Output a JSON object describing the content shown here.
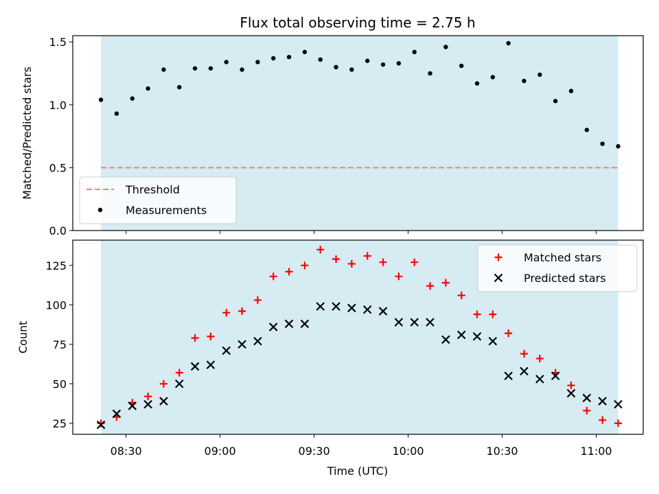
{
  "chart_data": {
    "type": "scatter",
    "title": "Flux total observing time = 2.75 h",
    "xlabel": "Time (UTC)",
    "x_tick_labels": [
      "08:30",
      "09:00",
      "09:30",
      "10:00",
      "10:30",
      "11:00"
    ],
    "shaded_interval": [
      "08:22",
      "11:07"
    ],
    "shade_color": "#add8e6",
    "x": [
      "08:22",
      "08:27",
      "08:32",
      "08:37",
      "08:42",
      "08:47",
      "08:52",
      "08:57",
      "09:02",
      "09:07",
      "09:12",
      "09:17",
      "09:22",
      "09:27",
      "09:32",
      "09:37",
      "09:42",
      "09:47",
      "09:52",
      "09:57",
      "10:02",
      "10:07",
      "10:12",
      "10:17",
      "10:22",
      "10:27",
      "10:32",
      "10:37",
      "10:42",
      "10:47",
      "10:52",
      "10:57",
      "11:02",
      "11:07"
    ],
    "panels": [
      {
        "ylabel": "Matched/Predicted stars",
        "ylim": [
          0,
          1.55
        ],
        "y_ticks": [
          "0.0",
          "0.5",
          "1.0",
          "1.5"
        ],
        "legend_position": "lower-left",
        "series": [
          {
            "name": "Threshold",
            "type": "line",
            "style": "dashed",
            "color": "#f08080",
            "values": [
              0.5,
              0.5
            ]
          },
          {
            "name": "Measurements",
            "type": "scatter",
            "marker": "dot",
            "color": "#000000",
            "values": [
              1.04,
              0.93,
              1.05,
              1.13,
              1.28,
              1.14,
              1.29,
              1.29,
              1.34,
              1.28,
              1.34,
              1.37,
              1.38,
              1.42,
              1.36,
              1.3,
              1.28,
              1.35,
              1.32,
              1.33,
              1.42,
              1.25,
              1.46,
              1.31,
              1.17,
              1.22,
              1.49,
              1.19,
              1.24,
              1.03,
              1.11,
              0.8,
              0.69,
              0.67
            ]
          }
        ]
      },
      {
        "ylabel": "Count",
        "ylim": [
          18,
          141
        ],
        "y_ticks": [
          "25",
          "50",
          "75",
          "100",
          "125"
        ],
        "legend_position": "upper-right",
        "series": [
          {
            "name": "Matched stars",
            "type": "scatter",
            "marker": "plus",
            "color": "#ff0000",
            "values": [
              25,
              29,
              38,
              42,
              50,
              57,
              79,
              80,
              95,
              96,
              103,
              118,
              121,
              125,
              135,
              129,
              126,
              131,
              127,
              118,
              127,
              112,
              114,
              106,
              94,
              94,
              82,
              69,
              66,
              57,
              49,
              33,
              27,
              25
            ]
          },
          {
            "name": "Predicted stars",
            "type": "scatter",
            "marker": "x",
            "color": "#000000",
            "values": [
              24,
              31,
              36,
              37,
              39,
              50,
              61,
              62,
              71,
              75,
              77,
              86,
              88,
              88,
              99,
              99,
              98,
              97,
              96,
              89,
              89,
              89,
              78,
              81,
              80,
              77,
              55,
              58,
              53,
              55,
              44,
              41,
              39,
              37
            ]
          }
        ]
      }
    ]
  }
}
